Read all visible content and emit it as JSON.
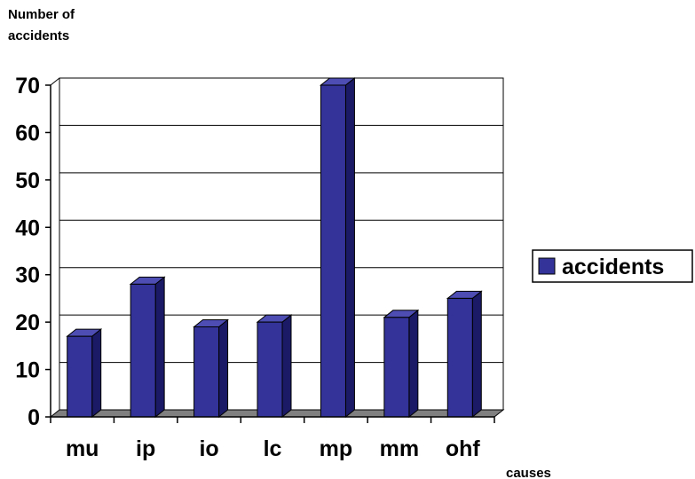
{
  "chart_data": {
    "type": "bar",
    "ylabel": [
      "Number of",
      "accidents"
    ],
    "xlabel": "causes",
    "categories": [
      "mu",
      "ip",
      "io",
      "lc",
      "mp",
      "mm",
      "ohf"
    ],
    "series": [
      {
        "name": "accidents",
        "values": [
          17,
          28,
          19,
          20,
          70,
          21,
          25
        ]
      }
    ],
    "ylim": [
      0,
      70
    ],
    "yticks": [
      "0",
      "10",
      "20",
      "30",
      "40",
      "50",
      "60",
      "70"
    ],
    "grid": true,
    "legend": "right",
    "style": "3d-bar",
    "colors": {
      "bar_front": "#333399",
      "bar_side": "#1a1a66",
      "bar_top": "#4d4db3",
      "floor": "#808080"
    }
  }
}
